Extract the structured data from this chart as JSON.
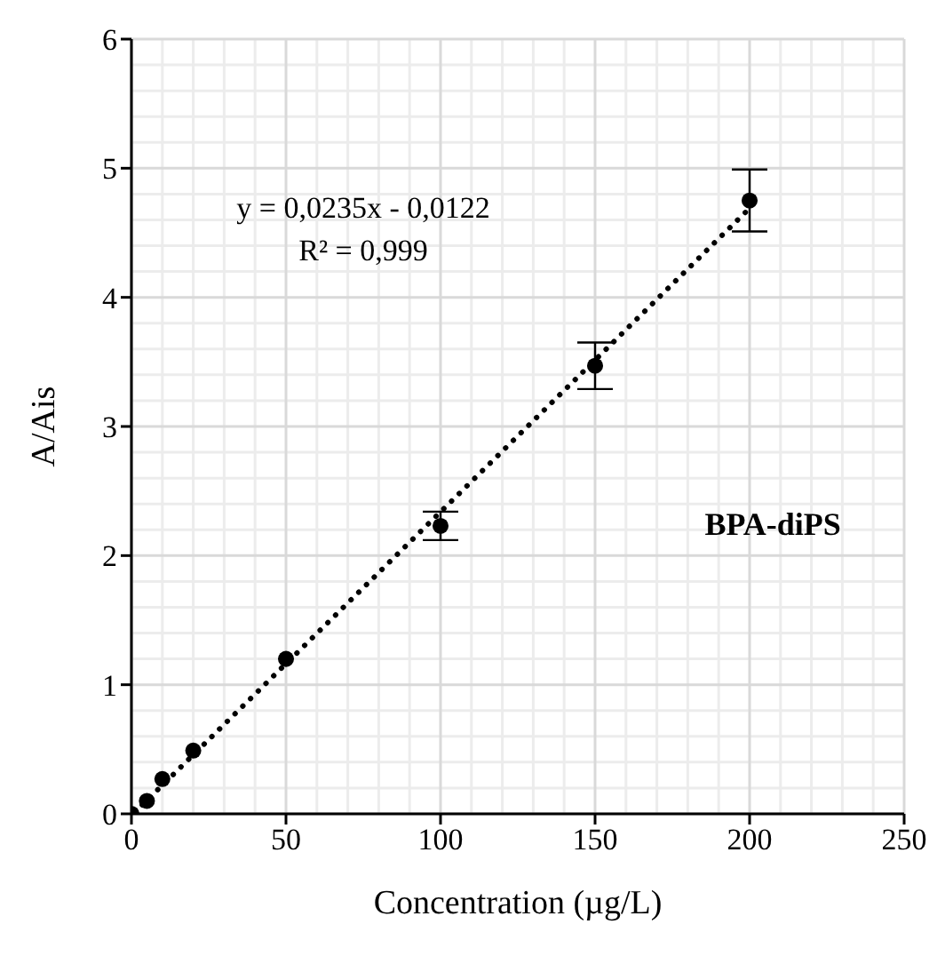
{
  "chart_data": {
    "type": "scatter",
    "xlabel": "Concentration (µg/L)",
    "ylabel": "A/Ais",
    "annotations": [
      "y = 0,0235x - 0,0122",
      "R² = 0,999",
      "BPA-diPS"
    ],
    "x": [
      0,
      5,
      10,
      20,
      50,
      100,
      150,
      200
    ],
    "series": [
      {
        "type": "scatter",
        "color": "#000000",
        "marker": "circle",
        "values": [
          0.0,
          0.1,
          0.27,
          0.49,
          1.2,
          2.23,
          3.47,
          4.75
        ],
        "errors": [
          null,
          null,
          null,
          null,
          null,
          0.11,
          0.18,
          0.24
        ]
      },
      {
        "type": "line",
        "color": "#000000",
        "line_style": "dotted",
        "marker": "none",
        "x": [
          1,
          200
        ],
        "values": [
          0.01,
          4.69
        ]
      }
    ],
    "xlim": [
      0,
      250
    ],
    "xticks": [
      0,
      50,
      100,
      150,
      200,
      250
    ],
    "ylim": [
      0,
      6
    ],
    "yticks": [
      0,
      1,
      2,
      3,
      4,
      5,
      6
    ],
    "grid": true
  }
}
